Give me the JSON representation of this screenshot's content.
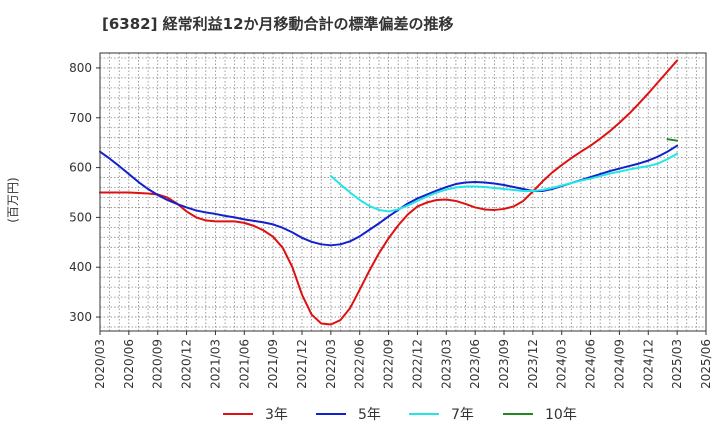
{
  "chart_data": {
    "type": "line",
    "title": "[6382]  経常利益12か月移動合計の標準偏差の推移",
    "xlabel": "",
    "ylabel": "(百万円)",
    "ylim": [
      272,
      830
    ],
    "yticks": [
      300,
      400,
      500,
      600,
      700,
      800
    ],
    "x_ticks": [
      "2020/03",
      "2020/06",
      "2020/09",
      "2020/12",
      "2021/03",
      "2021/06",
      "2021/09",
      "2021/12",
      "2022/03",
      "2022/06",
      "2022/09",
      "2022/12",
      "2023/03",
      "2023/06",
      "2023/09",
      "2023/12",
      "2024/03",
      "2024/06",
      "2024/09",
      "2024/12",
      "2025/03",
      "2025/06"
    ],
    "grid": true,
    "legend_position": "bottom",
    "series": [
      {
        "name": "3年",
        "color": "#dd1111",
        "points": [
          [
            "2020/03",
            550
          ],
          [
            "2020/04",
            550
          ],
          [
            "2020/05",
            550
          ],
          [
            "2020/06",
            550
          ],
          [
            "2020/07",
            549
          ],
          [
            "2020/08",
            548
          ],
          [
            "2020/09",
            546
          ],
          [
            "2020/10",
            540
          ],
          [
            "2020/11",
            528
          ],
          [
            "2020/12",
            512
          ],
          [
            "2021/01",
            500
          ],
          [
            "2021/02",
            494
          ],
          [
            "2021/03",
            492
          ],
          [
            "2021/04",
            492
          ],
          [
            "2021/05",
            492
          ],
          [
            "2021/06",
            489
          ],
          [
            "2021/07",
            483
          ],
          [
            "2021/08",
            474
          ],
          [
            "2021/09",
            461
          ],
          [
            "2021/10",
            439
          ],
          [
            "2021/11",
            400
          ],
          [
            "2021/12",
            345
          ],
          [
            "2022/01",
            305
          ],
          [
            "2022/02",
            287
          ],
          [
            "2022/03",
            285
          ],
          [
            "2022/04",
            294
          ],
          [
            "2022/05",
            318
          ],
          [
            "2022/06",
            355
          ],
          [
            "2022/07",
            393
          ],
          [
            "2022/08",
            428
          ],
          [
            "2022/09",
            458
          ],
          [
            "2022/10",
            484
          ],
          [
            "2022/11",
            506
          ],
          [
            "2022/12",
            522
          ],
          [
            "2023/01",
            530
          ],
          [
            "2023/02",
            535
          ],
          [
            "2023/03",
            536
          ],
          [
            "2023/04",
            533
          ],
          [
            "2023/05",
            527
          ],
          [
            "2023/06",
            520
          ],
          [
            "2023/07",
            516
          ],
          [
            "2023/08",
            515
          ],
          [
            "2023/09",
            517
          ],
          [
            "2023/10",
            522
          ],
          [
            "2023/11",
            533
          ],
          [
            "2023/12",
            552
          ],
          [
            "2024/01",
            572
          ],
          [
            "2024/02",
            590
          ],
          [
            "2024/03",
            605
          ],
          [
            "2024/04",
            619
          ],
          [
            "2024/05",
            632
          ],
          [
            "2024/06",
            644
          ],
          [
            "2024/07",
            658
          ],
          [
            "2024/08",
            673
          ],
          [
            "2024/09",
            690
          ],
          [
            "2024/10",
            708
          ],
          [
            "2024/11",
            728
          ],
          [
            "2024/12",
            749
          ],
          [
            "2025/01",
            771
          ],
          [
            "2025/02",
            793
          ],
          [
            "2025/03",
            815
          ]
        ]
      },
      {
        "name": "5年",
        "color": "#1122cc",
        "points": [
          [
            "2020/03",
            632
          ],
          [
            "2020/04",
            618
          ],
          [
            "2020/05",
            603
          ],
          [
            "2020/06",
            587
          ],
          [
            "2020/07",
            571
          ],
          [
            "2020/08",
            557
          ],
          [
            "2020/09",
            545
          ],
          [
            "2020/10",
            535
          ],
          [
            "2020/11",
            527
          ],
          [
            "2020/12",
            520
          ],
          [
            "2021/01",
            514
          ],
          [
            "2021/02",
            510
          ],
          [
            "2021/03",
            507
          ],
          [
            "2021/04",
            503
          ],
          [
            "2021/05",
            500
          ],
          [
            "2021/06",
            496
          ],
          [
            "2021/07",
            493
          ],
          [
            "2021/08",
            490
          ],
          [
            "2021/09",
            486
          ],
          [
            "2021/10",
            479
          ],
          [
            "2021/11",
            470
          ],
          [
            "2021/12",
            459
          ],
          [
            "2022/01",
            451
          ],
          [
            "2022/02",
            446
          ],
          [
            "2022/03",
            444
          ],
          [
            "2022/04",
            446
          ],
          [
            "2022/05",
            452
          ],
          [
            "2022/06",
            462
          ],
          [
            "2022/07",
            475
          ],
          [
            "2022/08",
            488
          ],
          [
            "2022/09",
            502
          ],
          [
            "2022/10",
            515
          ],
          [
            "2022/11",
            528
          ],
          [
            "2022/12",
            538
          ],
          [
            "2023/01",
            546
          ],
          [
            "2023/02",
            554
          ],
          [
            "2023/03",
            561
          ],
          [
            "2023/04",
            567
          ],
          [
            "2023/05",
            570
          ],
          [
            "2023/06",
            571
          ],
          [
            "2023/07",
            570
          ],
          [
            "2023/08",
            568
          ],
          [
            "2023/09",
            565
          ],
          [
            "2023/10",
            561
          ],
          [
            "2023/11",
            557
          ],
          [
            "2023/12",
            553
          ],
          [
            "2024/01",
            553
          ],
          [
            "2024/02",
            557
          ],
          [
            "2024/03",
            563
          ],
          [
            "2024/04",
            569
          ],
          [
            "2024/05",
            575
          ],
          [
            "2024/06",
            581
          ],
          [
            "2024/07",
            587
          ],
          [
            "2024/08",
            593
          ],
          [
            "2024/09",
            598
          ],
          [
            "2024/10",
            603
          ],
          [
            "2024/11",
            608
          ],
          [
            "2024/12",
            614
          ],
          [
            "2025/01",
            622
          ],
          [
            "2025/02",
            632
          ],
          [
            "2025/03",
            644
          ]
        ]
      },
      {
        "name": "7年",
        "color": "#22e6e6",
        "points": [
          [
            "2022/03",
            583
          ],
          [
            "2022/04",
            566
          ],
          [
            "2022/05",
            550
          ],
          [
            "2022/06",
            535
          ],
          [
            "2022/07",
            523
          ],
          [
            "2022/08",
            515
          ],
          [
            "2022/09",
            512
          ],
          [
            "2022/10",
            516
          ],
          [
            "2022/11",
            524
          ],
          [
            "2022/12",
            533
          ],
          [
            "2023/01",
            542
          ],
          [
            "2023/02",
            550
          ],
          [
            "2023/03",
            556
          ],
          [
            "2023/04",
            560
          ],
          [
            "2023/05",
            562
          ],
          [
            "2023/06",
            562
          ],
          [
            "2023/07",
            561
          ],
          [
            "2023/08",
            559
          ],
          [
            "2023/09",
            557
          ],
          [
            "2023/10",
            555
          ],
          [
            "2023/11",
            553
          ],
          [
            "2023/12",
            553
          ],
          [
            "2024/01",
            555
          ],
          [
            "2024/02",
            559
          ],
          [
            "2024/03",
            564
          ],
          [
            "2024/04",
            569
          ],
          [
            "2024/05",
            574
          ],
          [
            "2024/06",
            578
          ],
          [
            "2024/07",
            583
          ],
          [
            "2024/08",
            588
          ],
          [
            "2024/09",
            592
          ],
          [
            "2024/10",
            596
          ],
          [
            "2024/11",
            600
          ],
          [
            "2024/12",
            603
          ],
          [
            "2025/01",
            608
          ],
          [
            "2025/02",
            617
          ],
          [
            "2025/03",
            628
          ]
        ]
      },
      {
        "name": "10年",
        "color": "#228822",
        "points": [
          [
            "2025/02",
            657
          ],
          [
            "2025/03",
            654
          ]
        ]
      }
    ]
  }
}
